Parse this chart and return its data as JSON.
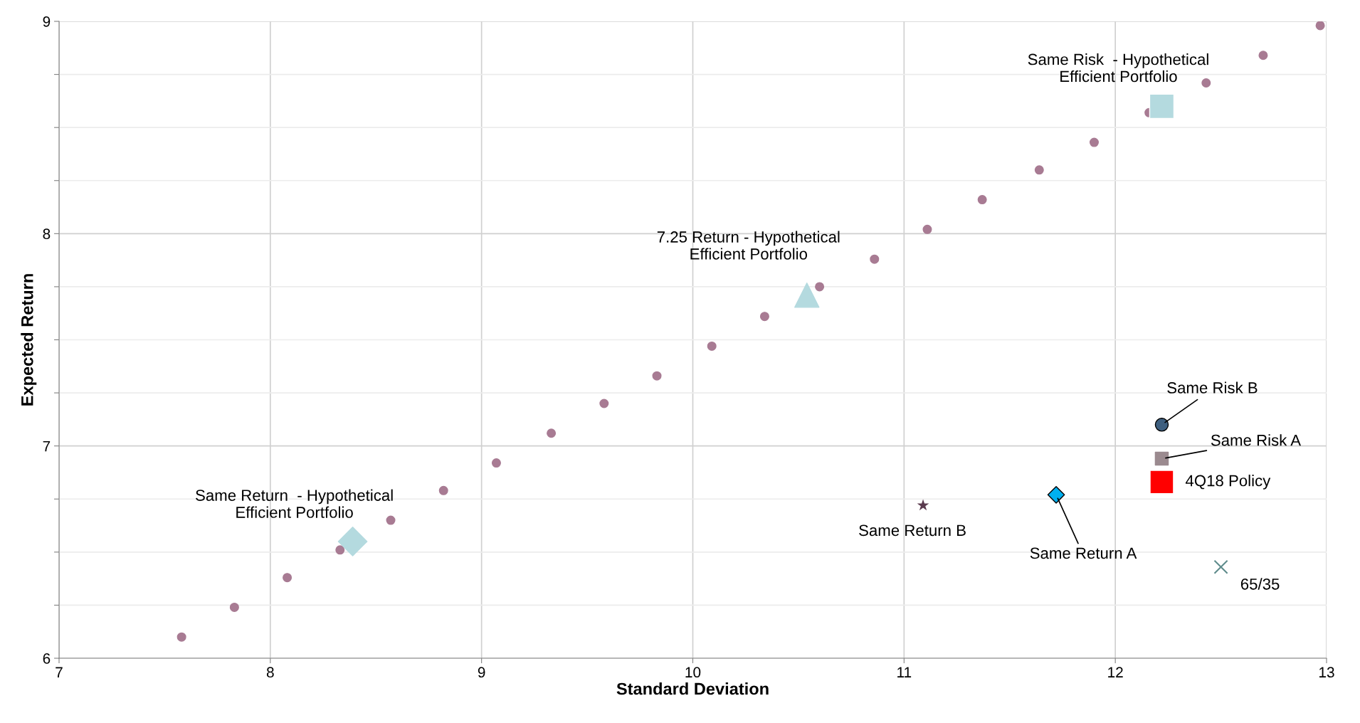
{
  "chart_data": {
    "type": "scatter",
    "xlabel": "Standard Deviation",
    "ylabel": "Expected Return",
    "xlim": [
      7,
      13
    ],
    "xticks": [
      7,
      8,
      9,
      10,
      11,
      12,
      13
    ],
    "ylim": [
      6,
      9
    ],
    "yticks": [
      6,
      {
        "value": 6.25,
        "label": null
      },
      {
        "value": 6.5,
        "label": null
      },
      {
        "value": 6.75,
        "label": null
      },
      7,
      {
        "value": 7.25,
        "label": null
      },
      {
        "value": 7.5,
        "label": null
      },
      {
        "value": 7.75,
        "label": null
      },
      8,
      {
        "value": 8.25,
        "label": null
      },
      {
        "value": 8.5,
        "label": null
      },
      {
        "value": 8.75,
        "label": null
      },
      9
    ],
    "grid": true,
    "legend": false,
    "series": [
      {
        "color": "#a87b93",
        "marker": "circle",
        "x": [
          7.58,
          7.83,
          8.08,
          8.33,
          8.57,
          8.82,
          9.07,
          9.33,
          9.58,
          9.83,
          10.09,
          10.34,
          10.6,
          10.86,
          11.11,
          11.37,
          11.64,
          11.9,
          12.16,
          12.43,
          12.7,
          12.97
        ],
        "values": [
          6.1,
          6.24,
          6.38,
          6.51,
          6.65,
          6.79,
          6.92,
          7.06,
          7.2,
          7.33,
          7.47,
          7.61,
          7.75,
          7.88,
          8.02,
          8.16,
          8.3,
          8.43,
          8.57,
          8.71,
          8.84,
          8.98
        ]
      },
      {
        "name": "Same Risk  - Hypothetical\nEfficient Portfolio",
        "color": "#b4dadf",
        "marker": "square",
        "x": [
          12.22
        ],
        "values": [
          8.6
        ]
      },
      {
        "name": "7.25 Return - Hypothetical\nEfficient Portfolio",
        "color": "#b4dadf",
        "marker": "triangle",
        "x": [
          10.54
        ],
        "values": [
          7.71
        ]
      },
      {
        "name": "Same Return  - Hypothetical\nEfficient Portfolio",
        "color": "#b4dadf",
        "marker": "diamond",
        "x": [
          8.39
        ],
        "values": [
          6.55
        ]
      },
      {
        "name": "Same Risk B",
        "color": "#3e5f7f",
        "marker": "circle",
        "x": [
          12.22
        ],
        "values": [
          7.1
        ]
      },
      {
        "name": "Same Risk A",
        "color": "#9b8a8f",
        "marker": "square",
        "x": [
          12.22
        ],
        "values": [
          6.94
        ]
      },
      {
        "name": "4Q18 Policy",
        "color": "#ff0000",
        "marker": "square",
        "x": [
          12.22
        ],
        "values": [
          6.83
        ]
      },
      {
        "name": "Same Return B",
        "color": "#5a3a4e",
        "marker": "star",
        "x": [
          11.09
        ],
        "values": [
          6.72
        ]
      },
      {
        "name": "Same Return A",
        "color": "#00b0f0",
        "marker": "diamond",
        "x": [
          11.72
        ],
        "values": [
          6.77
        ]
      },
      {
        "name": "65/35",
        "color": "#5f8c8c",
        "marker": "cross",
        "x": [
          12.5
        ],
        "values": [
          6.43
        ]
      }
    ]
  }
}
